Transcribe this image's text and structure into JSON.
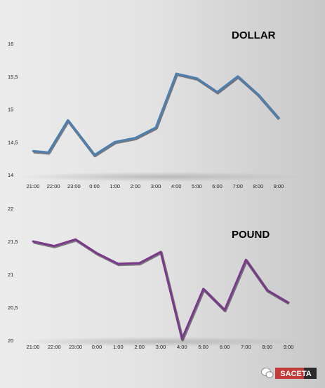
{
  "charts": [
    {
      "id": "dollar",
      "title": "DOLLAR",
      "color": "#4d7fb0",
      "x_ticks": [
        "21:00",
        "22:00",
        "23:00",
        "0:00",
        "1:00",
        "2:00",
        "3:00",
        "4:00",
        "5:00",
        "6:00",
        "7:00",
        "8:00",
        "9:00"
      ],
      "y_tick_labels": [
        "14",
        "14,5",
        "15",
        "15,5",
        "16"
      ],
      "y_tick_values": [
        14,
        14.5,
        15,
        15.5,
        16
      ]
    },
    {
      "id": "pound",
      "title": "POUND",
      "color": "#7a3a8a",
      "x_ticks": [
        "21:00",
        "22:00",
        "23:00",
        "0:00",
        "1:00",
        "2:00",
        "3:00",
        "4:00",
        "5:00",
        "6:00",
        "7:00",
        "8:00",
        "9:00"
      ],
      "y_tick_labels": [
        "20",
        "20,5",
        "21",
        "21,5",
        "22"
      ],
      "y_tick_values": [
        20,
        20.5,
        21,
        21.5,
        22
      ]
    }
  ],
  "chart_data": [
    {
      "type": "line",
      "title": "DOLLAR",
      "xlabel": "",
      "ylabel": "",
      "ylim": [
        14,
        16
      ],
      "x": [
        21,
        21.75,
        22.7,
        24,
        25,
        26,
        27,
        28,
        29,
        30,
        31,
        32,
        33
      ],
      "y": [
        14.36,
        14.34,
        14.83,
        14.3,
        14.5,
        14.56,
        14.72,
        15.54,
        15.47,
        15.26,
        15.5,
        15.22,
        14.86
      ],
      "grid": false,
      "legend": "none"
    },
    {
      "type": "line",
      "title": "POUND",
      "xlabel": "",
      "ylabel": "",
      "ylim": [
        20,
        22
      ],
      "x": [
        21,
        22,
        23,
        24,
        25,
        26,
        27,
        28,
        29,
        30,
        31,
        32,
        33
      ],
      "y": [
        21.5,
        21.43,
        21.53,
        21.32,
        21.16,
        21.17,
        21.34,
        20.02,
        20.78,
        20.46,
        21.22,
        20.76,
        20.57
      ],
      "grid": false,
      "legend": "none"
    }
  ],
  "watermark": {
    "text": "SACETA",
    "icon": "wechat-bubble-icon"
  }
}
